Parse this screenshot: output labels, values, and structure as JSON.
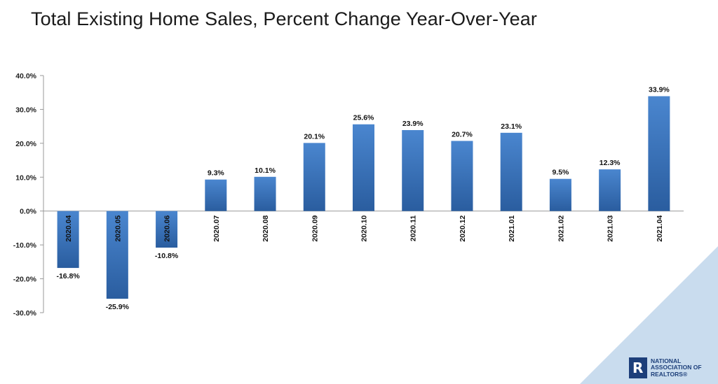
{
  "title": "Total Existing Home Sales, Percent Change Year-Over-Year",
  "colors": {
    "bar_top": "#4a86cf",
    "bar_bottom": "#2a5d9f",
    "axis": "#9a9a9a",
    "corner": "#c9dcee",
    "brand": "#1d3f7a"
  },
  "logo": {
    "mark": "R",
    "line1": "NATIONAL",
    "line2": "ASSOCIATION OF",
    "line3": "REALTORS®"
  },
  "chart_data": {
    "type": "bar",
    "title": "Total Existing Home Sales, Percent Change Year-Over-Year",
    "xlabel": "",
    "ylabel": "",
    "categories": [
      "2020.04",
      "2020.05",
      "2020.06",
      "2020.07",
      "2020.08",
      "2020.09",
      "2020.10",
      "2020.11",
      "2020.12",
      "2021.01",
      "2021.02",
      "2021.03",
      "2021.04"
    ],
    "values": [
      -16.8,
      -25.9,
      -10.8,
      9.3,
      10.1,
      20.1,
      25.6,
      23.9,
      20.7,
      23.1,
      9.5,
      12.3,
      33.9
    ],
    "value_labels": [
      "-16.8%",
      "-25.9%",
      "-10.8%",
      "9.3%",
      "10.1%",
      "20.1%",
      "25.6%",
      "23.9%",
      "20.7%",
      "23.1%",
      "9.5%",
      "12.3%",
      "33.9%"
    ],
    "ylim": [
      -30,
      40
    ],
    "yticks": [
      40,
      30,
      20,
      10,
      0,
      -10,
      -20,
      -30
    ],
    "ytick_labels": [
      "40.0%",
      "30.0%",
      "20.0%",
      "10.0%",
      "0.0%",
      "-10.0%",
      "-20.0%",
      "-30.0%"
    ],
    "grid": false,
    "legend": "none"
  }
}
